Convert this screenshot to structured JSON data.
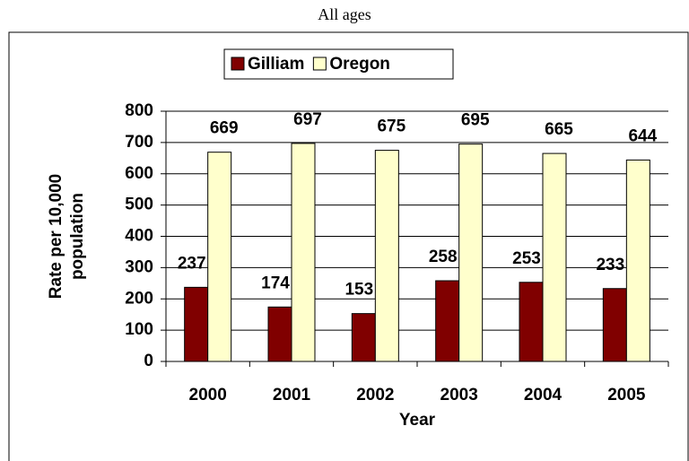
{
  "chart_data": {
    "type": "bar",
    "title": "All ages",
    "categories": [
      "2000",
      "2001",
      "2002",
      "2003",
      "2004",
      "2005"
    ],
    "series": [
      {
        "name": "Gilliam",
        "color": "#800000",
        "values": [
          237,
          174,
          153,
          258,
          253,
          233
        ]
      },
      {
        "name": "Oregon",
        "color": "#ffffcc",
        "values": [
          669,
          697,
          675,
          695,
          665,
          644
        ]
      }
    ],
    "xlabel": "Year",
    "ylabel": [
      "Rate per 10,000",
      "population"
    ],
    "ylim": [
      0,
      800
    ],
    "yticks": [
      0,
      100,
      200,
      300,
      400,
      500,
      600,
      700,
      800
    ],
    "grid": true,
    "legend": "top"
  }
}
